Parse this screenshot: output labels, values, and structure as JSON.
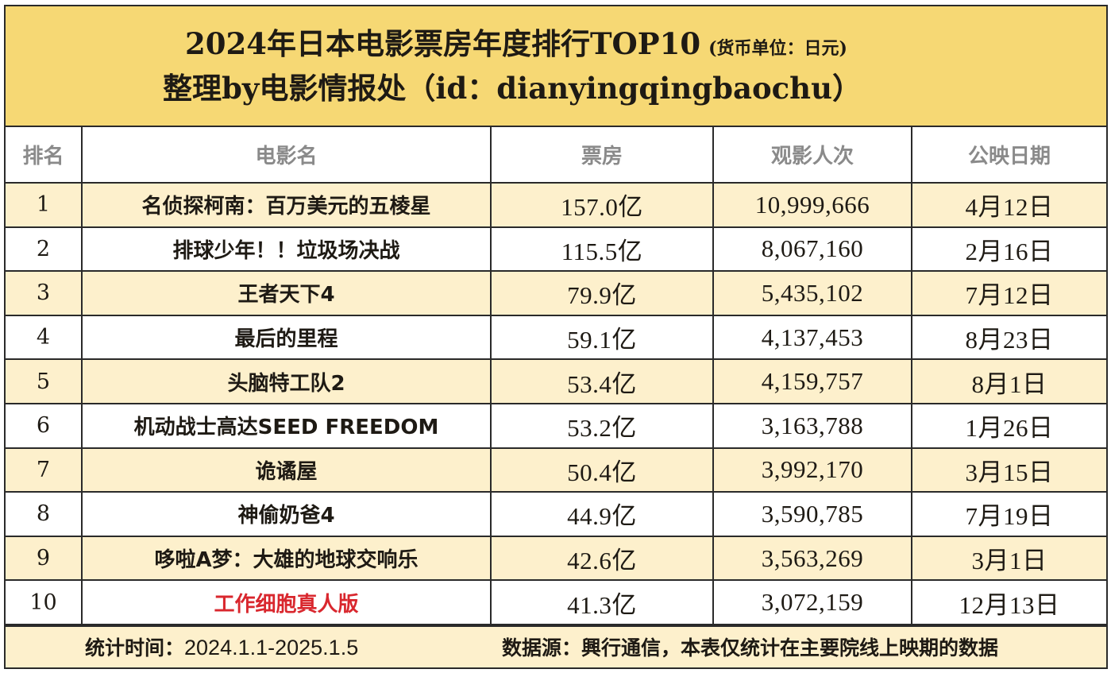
{
  "title": {
    "line1": "2024年日本电影票房年度排行TOP10",
    "unit_note": "(货币单位：日元)",
    "line2": "整理by电影情报处（id：dianyingqingbaochu）"
  },
  "table": {
    "headers": [
      "排名",
      "电影名",
      "票房",
      "观影人次",
      "公映日期"
    ],
    "rows": [
      {
        "rank": "1",
        "title": "名侦探柯南：百万美元的五棱星",
        "gross": "157.0亿",
        "admissions": "10,999,666",
        "release": "4月12日",
        "highlight": false
      },
      {
        "rank": "2",
        "title": "排球少年！！垃圾场决战",
        "gross": "115.5亿",
        "admissions": "8,067,160",
        "release": "2月16日",
        "highlight": false
      },
      {
        "rank": "3",
        "title": "王者天下4",
        "gross": "79.9亿",
        "admissions": "5,435,102",
        "release": "7月12日",
        "highlight": false
      },
      {
        "rank": "4",
        "title": "最后的里程",
        "gross": "59.1亿",
        "admissions": "4,137,453",
        "release": "8月23日",
        "highlight": false
      },
      {
        "rank": "5",
        "title": "头脑特工队2",
        "gross": "53.4亿",
        "admissions": "4,159,757",
        "release": "8月1日",
        "highlight": false
      },
      {
        "rank": "6",
        "title": "机动战士高达SEED FREEDOM",
        "gross": "53.2亿",
        "admissions": "3,163,788",
        "release": "1月26日",
        "highlight": false
      },
      {
        "rank": "7",
        "title": "诡谲屋",
        "gross": "50.4亿",
        "admissions": "3,992,170",
        "release": "3月15日",
        "highlight": false
      },
      {
        "rank": "8",
        "title": "神偷奶爸4",
        "gross": "44.9亿",
        "admissions": "3,590,785",
        "release": "7月19日",
        "highlight": false
      },
      {
        "rank": "9",
        "title": "哆啦A梦：大雄的地球交响乐",
        "gross": "42.6亿",
        "admissions": "3,563,269",
        "release": "3月1日",
        "highlight": false
      },
      {
        "rank": "10",
        "title": "工作细胞真人版",
        "gross": "41.3亿",
        "admissions": "3,072,159",
        "release": "12月13日",
        "highlight": true
      }
    ]
  },
  "footer": {
    "period_label": "统计时间：",
    "period_value": "2024.1.1-2025.1.5",
    "source": "数据源：興行通信，本表仅统计在主要院线上映期的数据"
  },
  "colors": {
    "title_bg": "#f6d874",
    "odd_row_bg": "#fdf0cc",
    "even_row_bg": "#ffffff",
    "header_text": "#8a8a8a",
    "highlight_text": "#d9272e",
    "border": "#2a2a2a"
  }
}
